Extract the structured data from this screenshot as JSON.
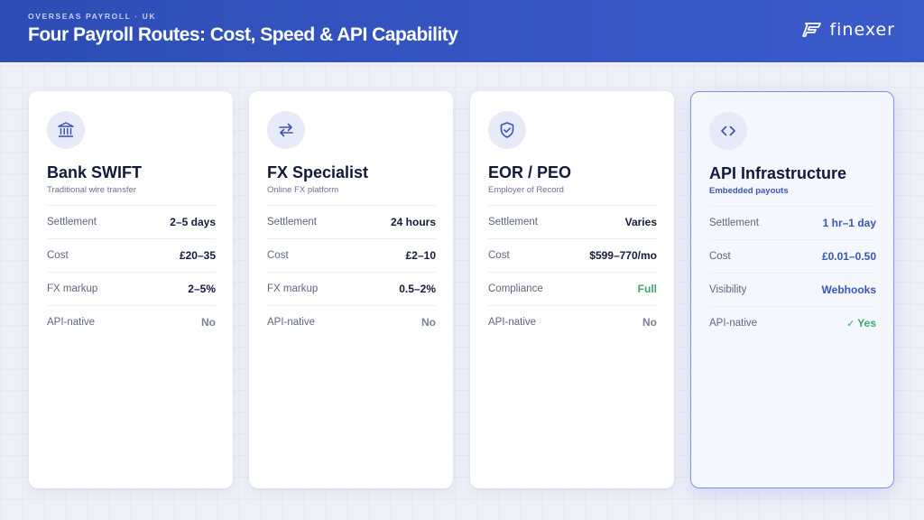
{
  "header": {
    "eyebrow": "OVERSEAS PAYROLL · UK",
    "title": "Four Payroll Routes: Cost, Speed & API Capability",
    "logo_text": "finexer"
  },
  "colors": {
    "header_blue": "#3756c4",
    "text_dark": "#141b3a",
    "muted": "#7a819c",
    "success": "#3fa66a",
    "accent": "#3b55b8"
  },
  "cards": [
    {
      "icon": "bank-icon",
      "title": "Bank SWIFT",
      "subtitle": "Traditional wire transfer",
      "rows": [
        {
          "label": "Settlement",
          "value": "2–5 days"
        },
        {
          "label": "Cost",
          "value": "£20–35"
        },
        {
          "label": "FX markup",
          "value": "2–5%"
        },
        {
          "label": "API-native",
          "value": "No"
        }
      ]
    },
    {
      "icon": "exchange-arrows-icon",
      "title": "FX Specialist",
      "subtitle": "Online FX platform",
      "rows": [
        {
          "label": "Settlement",
          "value": "24 hours"
        },
        {
          "label": "Cost",
          "value": "£2–10"
        },
        {
          "label": "FX markup",
          "value": "0.5–2%"
        },
        {
          "label": "API-native",
          "value": "No"
        }
      ]
    },
    {
      "icon": "shield-check-icon",
      "title": "EOR / PEO",
      "subtitle": "Employer of Record",
      "rows": [
        {
          "label": "Settlement",
          "value": "Varies"
        },
        {
          "label": "Cost",
          "value": "$599–770/mo"
        },
        {
          "label": "Compliance",
          "value": "Full"
        },
        {
          "label": "API-native",
          "value": "No"
        }
      ]
    },
    {
      "icon": "code-icon",
      "title": "API Infrastructure",
      "subtitle": "Embedded payouts",
      "rows": [
        {
          "label": "Settlement",
          "value": "1 hr–1 day"
        },
        {
          "label": "Cost",
          "value": "£0.01–0.50"
        },
        {
          "label": "Visibility",
          "value": "Webhooks"
        },
        {
          "label": "API-native",
          "value": "Yes"
        }
      ]
    }
  ]
}
